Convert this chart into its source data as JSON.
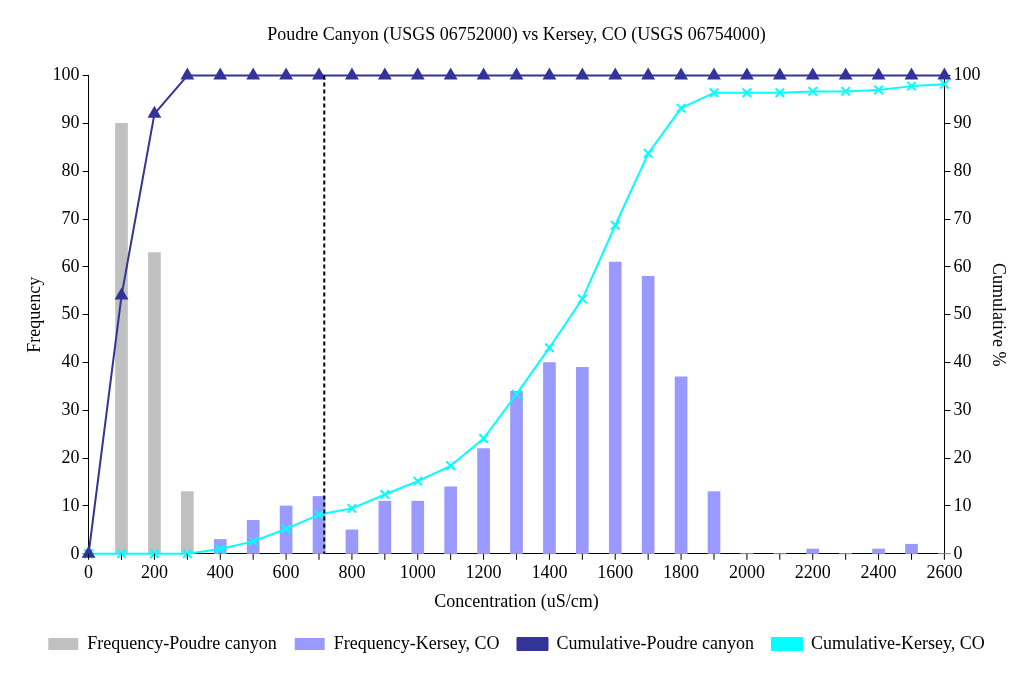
{
  "chart_data": {
    "type": "bar",
    "title": "Poudre Canyon (USGS 06752000) vs Kersey, CO (USGS 06754000)",
    "xlabel": "Concentration (uS/cm)",
    "ylabel": "Frequency",
    "y2label": "Cumulative %",
    "x": [
      0,
      100,
      200,
      300,
      400,
      500,
      600,
      700,
      800,
      900,
      1000,
      1100,
      1200,
      1300,
      1400,
      1500,
      1600,
      1700,
      1800,
      1900,
      2000,
      2100,
      2200,
      2300,
      2400,
      2500,
      2600
    ],
    "xlim": [
      0,
      2600
    ],
    "xticks": [
      0,
      200,
      400,
      600,
      800,
      1000,
      1200,
      1400,
      1600,
      1800,
      2000,
      2200,
      2400,
      2600
    ],
    "ylim": [
      0,
      100
    ],
    "yticks": [
      0,
      10,
      20,
      30,
      40,
      50,
      60,
      70,
      80,
      90,
      100
    ],
    "y2lim": [
      0,
      100
    ],
    "y2ticks": [
      0,
      10,
      20,
      30,
      40,
      50,
      60,
      70,
      80,
      90,
      100
    ],
    "grid": false,
    "legend": "bottom",
    "series": [
      {
        "name": "Frequency-Poudre canyon",
        "color": "#c0c0c0",
        "values": [
          0,
          90,
          63,
          13,
          0,
          0,
          0,
          0,
          0,
          0,
          0,
          0,
          0,
          0,
          0,
          0,
          0,
          0,
          0,
          0,
          0,
          0,
          0,
          0,
          0,
          0,
          0
        ]
      },
      {
        "name": "Frequency-Kersey, CO",
        "color": "#9999ff",
        "values": [
          0,
          0,
          0,
          0,
          3,
          7,
          10,
          12,
          5,
          11,
          11,
          14,
          22,
          34,
          40,
          39,
          61,
          58,
          37,
          13,
          0,
          0,
          1,
          0,
          1,
          2,
          0
        ]
      },
      {
        "name": "Cumulative-Poudre canyon",
        "type": "line",
        "color": "#333399",
        "marker": "triangle",
        "values": [
          0,
          54,
          92,
          100,
          100,
          100,
          100,
          100,
          100,
          100,
          100,
          100,
          100,
          100,
          100,
          100,
          100,
          100,
          100,
          100,
          100,
          100,
          100,
          100,
          100,
          100,
          100
        ]
      },
      {
        "name": "Cumulative-Kersey, CO",
        "type": "line",
        "color": "#00ffff",
        "marker": "cross",
        "values": [
          0,
          0,
          0,
          0,
          1,
          2.6,
          5.2,
          8.2,
          9.5,
          12.4,
          15.2,
          18.4,
          24.1,
          33.4,
          43.1,
          53.3,
          68.7,
          83.7,
          93.2,
          96.4,
          96.4,
          96.4,
          96.7,
          96.7,
          97,
          97.8,
          98.2
        ]
      }
    ],
    "ref_lines": [
      {
        "axis": "x",
        "value": 716,
        "color": "#000000",
        "line_style": "dashed"
      }
    ]
  }
}
